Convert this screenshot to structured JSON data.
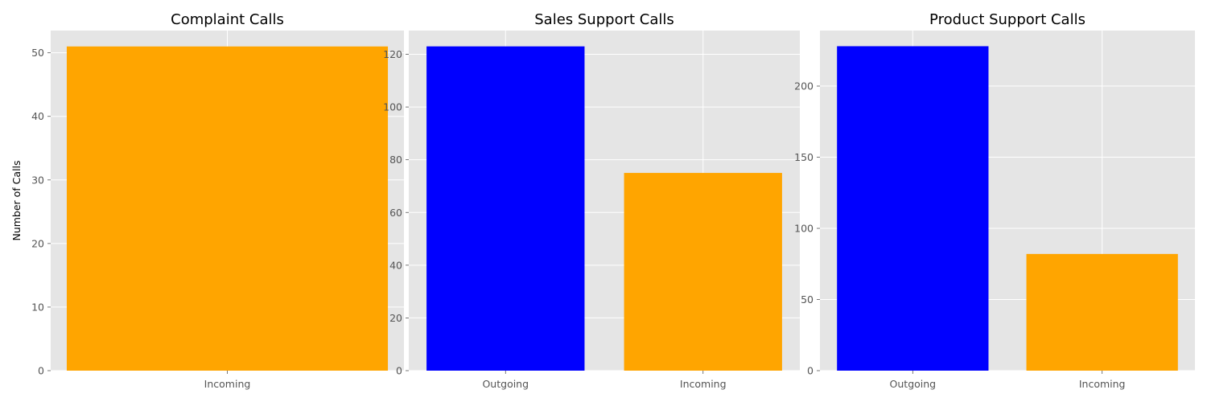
{
  "chart_data": [
    {
      "type": "bar",
      "title": "Complaint Calls",
      "ylabel": "Number of Calls",
      "xlabel": "",
      "categories": [
        "Incoming"
      ],
      "values": [
        51
      ],
      "colors": [
        "#ffa500"
      ],
      "ylim": [
        0,
        53.5
      ],
      "yticks": [
        0,
        10,
        20,
        30,
        40,
        50
      ],
      "grid": true
    },
    {
      "type": "bar",
      "title": "Sales Support Calls",
      "ylabel": "",
      "xlabel": "",
      "categories": [
        "Outgoing",
        "Incoming"
      ],
      "values": [
        123,
        75
      ],
      "colors": [
        "#0000ff",
        "#ffa500"
      ],
      "ylim": [
        0,
        129
      ],
      "yticks": [
        0,
        20,
        40,
        60,
        80,
        100,
        120
      ],
      "grid": true
    },
    {
      "type": "bar",
      "title": "Product Support Calls",
      "ylabel": "",
      "xlabel": "",
      "categories": [
        "Outgoing",
        "Incoming"
      ],
      "values": [
        228,
        82
      ],
      "colors": [
        "#0000ff",
        "#ffa500"
      ],
      "ylim": [
        0,
        239
      ],
      "yticks": [
        0,
        50,
        100,
        150,
        200
      ],
      "grid": true
    }
  ]
}
